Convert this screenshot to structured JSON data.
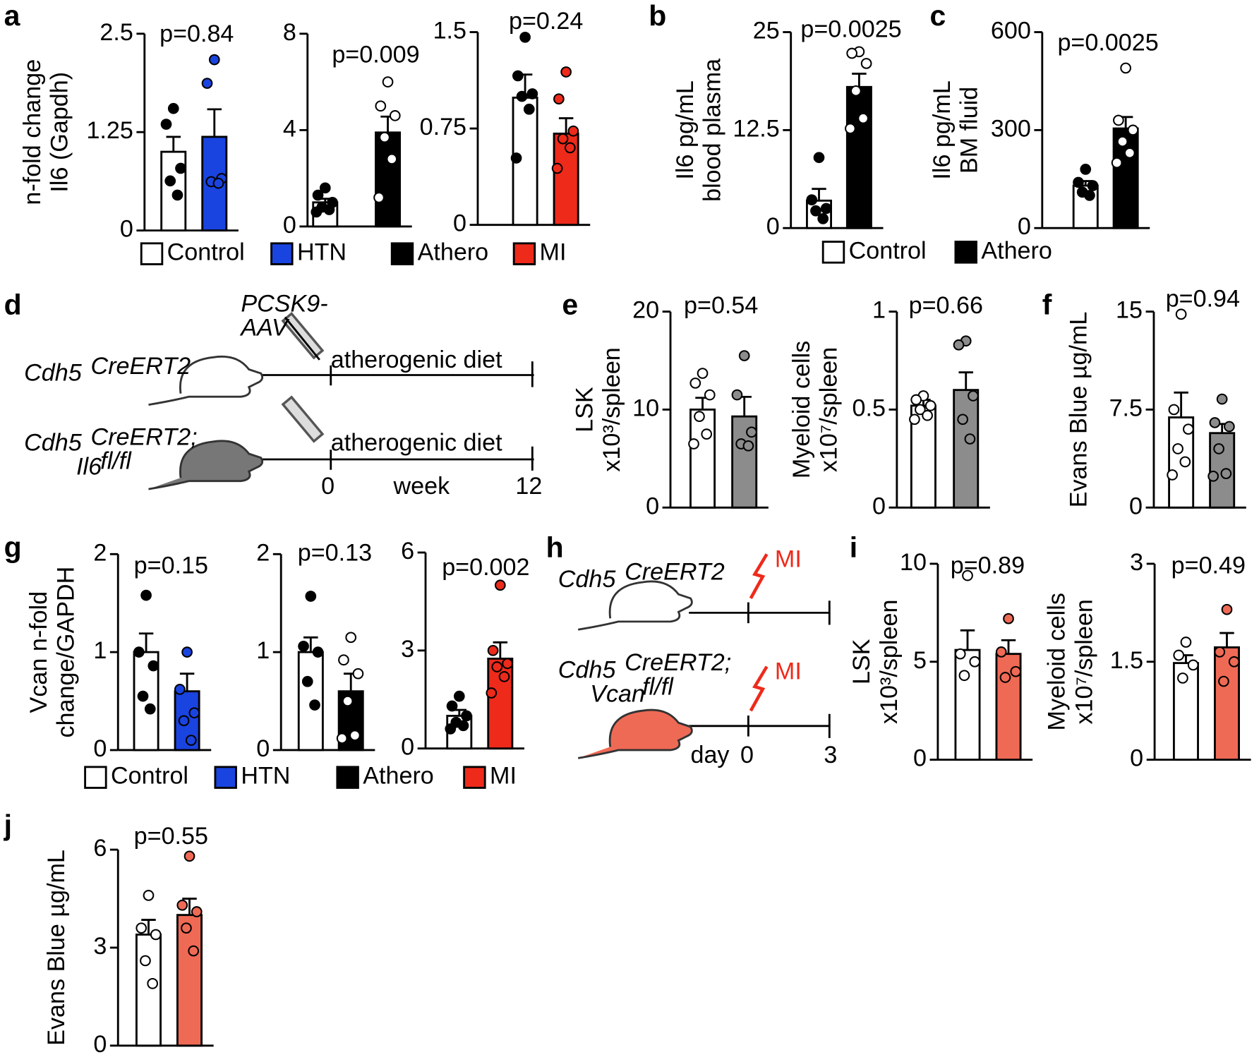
{
  "panel_labels": [
    "a",
    "b",
    "c",
    "d",
    "e",
    "f",
    "g",
    "h",
    "i",
    "j"
  ],
  "chart_data": [
    {
      "type": "bar",
      "ylabel": [
        "n-fold change",
        "Il6 (Gapdh)"
      ],
      "annotation": "p=0.84",
      "ylim": [
        0,
        2.5
      ],
      "yticks": [
        0,
        1.25,
        2.5
      ],
      "colors": [
        "#ffffff",
        "#1a44e0"
      ],
      "point_colors": [
        "#000000",
        "#1a44e0"
      ],
      "values": [
        1.0,
        1.19
      ],
      "errors": [
        0.19,
        0.35
      ],
      "points": [
        [
          1.55,
          1.35,
          0.79,
          0.63,
          0.45
        ],
        [
          2.17,
          1.87,
          0.66,
          0.62,
          0.6
        ]
      ]
    },
    {
      "type": "bar",
      "annotation": "p=0.009",
      "ylim": [
        0,
        8
      ],
      "yticks": [
        0,
        4,
        8
      ],
      "colors": [
        "#ffffff",
        "#000000"
      ],
      "point_colors": [
        "#000000",
        "#ffffff"
      ],
      "values": [
        1.0,
        3.9
      ],
      "errors": [
        0.15,
        0.66
      ],
      "points": [
        [
          1.6,
          1.3,
          1.0,
          0.8,
          0.7,
          0.6
        ],
        [
          6.0,
          5.0,
          4.6,
          3.7,
          2.8,
          1.2
        ]
      ]
    },
    {
      "type": "bar",
      "annotation": "p=0.24",
      "ylim": [
        0,
        1.5
      ],
      "yticks": [
        0,
        0.75,
        1.5
      ],
      "colors": [
        "#ffffff",
        "#ee2a1b"
      ],
      "point_colors": [
        "#000000",
        "#ee2a1b"
      ],
      "values": [
        0.99,
        0.71
      ],
      "errors": [
        0.18,
        0.12
      ],
      "points": [
        [
          1.46,
          1.16,
          1.02,
          1.0,
          0.9,
          0.52
        ],
        [
          1.19,
          0.98,
          0.73,
          0.67,
          0.6,
          0.44
        ]
      ]
    },
    {
      "type": "bar",
      "ylabel": [
        "Il6 pg/mL",
        "blood plasma"
      ],
      "annotation": "p=0.0025",
      "ylim": [
        0,
        25
      ],
      "yticks": [
        0,
        12.5,
        25
      ],
      "colors": [
        "#ffffff",
        "#000000"
      ],
      "point_colors": [
        "#000000",
        "#ffffff"
      ],
      "values": [
        3.5,
        18.0
      ],
      "errors": [
        1.5,
        1.7
      ],
      "points": [
        [
          9.0,
          3.6,
          2.5,
          2.2,
          1.2
        ],
        [
          22.5,
          22.3,
          21,
          17.5,
          14,
          12.7
        ]
      ]
    },
    {
      "type": "bar",
      "ylabel": [
        "Il6 pg/mL",
        "BM fluid"
      ],
      "annotation": "p=0.0025",
      "ylim": [
        0,
        600
      ],
      "yticks": [
        0,
        300,
        600
      ],
      "colors": [
        "#ffffff",
        "#000000"
      ],
      "point_colors": [
        "#000000",
        "#ffffff"
      ],
      "values": [
        130,
        305
      ],
      "errors": [
        14,
        35
      ],
      "points": [
        [
          180,
          140,
          130,
          110,
          100
        ],
        [
          490,
          330,
          300,
          265,
          230,
          200
        ]
      ]
    },
    {
      "type": "bar",
      "ylabel": [
        "LSK",
        "x10³/spleen"
      ],
      "annotation": "p=0.54",
      "ylim": [
        0,
        20
      ],
      "yticks": [
        0,
        10,
        20
      ],
      "colors": [
        "#ffffff",
        "#8c8c8c"
      ],
      "point_colors": [
        "#ffffff",
        "#8c8c8c"
      ],
      "values": [
        10.0,
        9.3
      ],
      "errors": [
        1.2,
        2.0
      ],
      "points": [
        [
          13.7,
          12.7,
          11.5,
          9.3,
          7.5,
          6.5
        ],
        [
          15.5,
          11.5,
          7.7,
          6.5,
          6.3
        ]
      ]
    },
    {
      "type": "bar",
      "ylabel": [
        "Myeloid cells",
        "x10⁷/spleen"
      ],
      "annotation": "p=0.66",
      "ylim": [
        0,
        1
      ],
      "yticks": [
        0,
        0.5,
        1
      ],
      "colors": [
        "#ffffff",
        "#8c8c8c"
      ],
      "point_colors": [
        "#ffffff",
        "#8c8c8c"
      ],
      "values": [
        0.52,
        0.6
      ],
      "errors": [
        0.03,
        0.09
      ],
      "points": [
        [
          0.57,
          0.55,
          0.52,
          0.5,
          0.47,
          0.45
        ],
        [
          0.85,
          0.83,
          0.57,
          0.45,
          0.35
        ]
      ]
    },
    {
      "type": "bar",
      "ylabel": [
        "Evans Blue µg/mL"
      ],
      "annotation": "p=0.94",
      "ylim": [
        0,
        15
      ],
      "yticks": [
        0,
        7.5,
        15
      ],
      "colors": [
        "#ffffff",
        "#8c8c8c"
      ],
      "point_colors": [
        "#ffffff",
        "#8c8c8c"
      ],
      "values": [
        6.9,
        5.7
      ],
      "errors": [
        1.9,
        0.7
      ],
      "points": [
        [
          14.8,
          7.5,
          6.0,
          4.5,
          3.5,
          2.5
        ],
        [
          8.3,
          6.5,
          6.2,
          4.5,
          2.6,
          2.4
        ]
      ]
    },
    {
      "type": "bar",
      "ylabel": [
        "Vcan n-fold",
        "change/GAPDH"
      ],
      "annotation": "p=0.15",
      "ylim": [
        0,
        2
      ],
      "yticks": [
        0,
        1,
        2
      ],
      "colors": [
        "#ffffff",
        "#1a44e0"
      ],
      "point_colors": [
        "#000000",
        "#1a44e0"
      ],
      "values": [
        1.0,
        0.6
      ],
      "errors": [
        0.19,
        0.18
      ],
      "points": [
        [
          1.58,
          1.0,
          0.86,
          0.55,
          0.42
        ],
        [
          1.0,
          0.62,
          0.38,
          0.3,
          0.1
        ]
      ]
    },
    {
      "type": "bar",
      "annotation": "p=0.13",
      "ylim": [
        0,
        2
      ],
      "yticks": [
        0,
        1,
        2
      ],
      "colors": [
        "#ffffff",
        "#000000"
      ],
      "point_colors": [
        "#000000",
        "#ffffff"
      ],
      "values": [
        1.0,
        0.6
      ],
      "errors": [
        0.15,
        0.18
      ],
      "points": [
        [
          1.57,
          1.06,
          1.0,
          0.7,
          0.46
        ],
        [
          1.15,
          0.92,
          0.78,
          0.5,
          0.15,
          0.12
        ]
      ]
    },
    {
      "type": "bar",
      "annotation": "p=0.002",
      "ylim": [
        0,
        6
      ],
      "yticks": [
        0,
        3,
        6
      ],
      "colors": [
        "#ffffff",
        "#ee2a1b"
      ],
      "point_colors": [
        "#000000",
        "#ee2a1b"
      ],
      "values": [
        1.0,
        2.75
      ],
      "errors": [
        0.18,
        0.5
      ],
      "points": [
        [
          1.6,
          1.3,
          1.0,
          0.8,
          0.7,
          0.6
        ],
        [
          5.0,
          3.0,
          2.6,
          2.5,
          2.2,
          1.7
        ]
      ]
    },
    {
      "type": "bar",
      "ylabel": [
        "LSK",
        "x10³/spleen"
      ],
      "annotation": "p=0.89",
      "ylim": [
        0,
        10
      ],
      "yticks": [
        0,
        5,
        10
      ],
      "colors": [
        "#ffffff",
        "#ef6a55"
      ],
      "point_colors": [
        "#ffffff",
        "#ef6a55"
      ],
      "values": [
        5.6,
        5.4
      ],
      "errors": [
        1.0,
        0.7
      ],
      "points": [
        [
          9.4,
          5.4,
          5.0,
          4.3
        ],
        [
          7.2,
          5.5,
          4.5,
          4.2
        ]
      ]
    },
    {
      "type": "bar",
      "ylabel": [
        "Myeloid cells",
        "x10⁷/spleen"
      ],
      "annotation": "p=0.49",
      "ylim": [
        0,
        3
      ],
      "yticks": [
        0,
        1.5,
        3
      ],
      "colors": [
        "#ffffff",
        "#ef6a55"
      ],
      "point_colors": [
        "#ffffff",
        "#ef6a55"
      ],
      "values": [
        1.48,
        1.72
      ],
      "errors": [
        0.12,
        0.22
      ],
      "points": [
        [
          1.8,
          1.6,
          1.45,
          1.25
        ],
        [
          2.3,
          1.65,
          1.5,
          1.2
        ]
      ]
    },
    {
      "type": "bar",
      "ylabel": [
        "Evans Blue µg/mL"
      ],
      "annotation": "p=0.55",
      "ylim": [
        0,
        6
      ],
      "yticks": [
        0,
        3,
        6
      ],
      "colors": [
        "#ffffff",
        "#ef6a55"
      ],
      "point_colors": [
        "#ffffff",
        "#ef6a55"
      ],
      "values": [
        3.4,
        4.0
      ],
      "errors": [
        0.45,
        0.5
      ],
      "points": [
        [
          4.6,
          3.6,
          3.4,
          2.6,
          1.9
        ],
        [
          5.8,
          4.3,
          4.1,
          3.6,
          2.9
        ]
      ]
    }
  ],
  "legends": [
    {
      "items": [
        {
          "name": "Control",
          "color": "#ffffff"
        },
        {
          "name": "HTN",
          "color": "#1a44e0"
        },
        {
          "name": "Athero",
          "color": "#000000"
        },
        {
          "name": "MI",
          "color": "#ee2a1b"
        }
      ]
    },
    {
      "items": [
        {
          "name": "Control",
          "color": "#ffffff"
        },
        {
          "name": "Athero",
          "color": "#000000"
        }
      ]
    },
    {
      "items": [
        {
          "name": "Control",
          "color": "#ffffff"
        },
        {
          "name": "HTN",
          "color": "#1a44e0"
        },
        {
          "name": "Athero",
          "color": "#000000"
        },
        {
          "name": "MI",
          "color": "#ee2a1b"
        }
      ]
    }
  ],
  "diagrams": {
    "d": [
      "PCSK9-",
      "AAV",
      "Cdh5",
      "CreERT2",
      "atherogenic diet",
      "Cdh5",
      "CreERT2;",
      "Il6",
      "fl/fl",
      "atherogenic diet",
      "0",
      "week",
      "12"
    ],
    "h": [
      "Cdh5",
      "CreERT2",
      "MI",
      "Cdh5",
      "CreERT2;",
      "Vcan",
      "fl/fl",
      "MI",
      "day",
      "0",
      "3"
    ]
  }
}
